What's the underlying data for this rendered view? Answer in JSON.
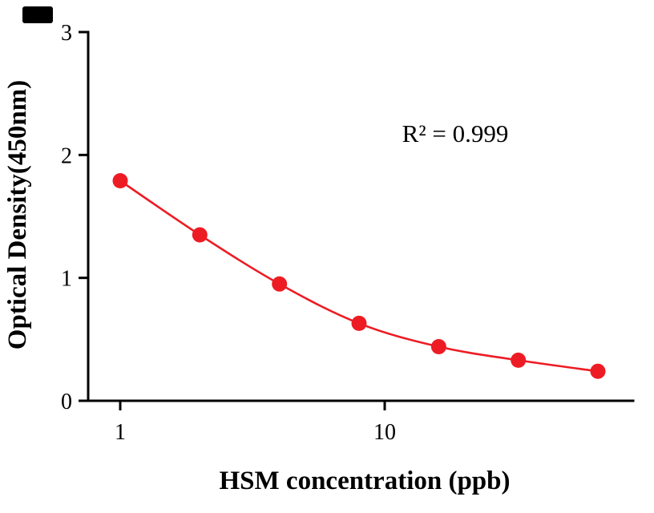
{
  "chart_data": {
    "type": "scatter",
    "title": "",
    "xlabel": "HSM concentration (ppb)",
    "ylabel": "Optical Density(450nm)",
    "annotation": "R² = 0.999",
    "x_scale": "log",
    "x": [
      1,
      2,
      4,
      8,
      16,
      32,
      64
    ],
    "y": [
      1.79,
      1.35,
      0.95,
      0.63,
      0.44,
      0.33,
      0.24
    ],
    "x_ticks": [
      1,
      10
    ],
    "x_range": [
      0.76,
      90
    ],
    "y_ticks": [
      0,
      1,
      2,
      3
    ],
    "ylim": [
      0,
      3
    ],
    "grid": false,
    "legend": "none",
    "marker_color": "#ED1C24",
    "line_color": "#ED1C24",
    "axis_color": "#000000",
    "background_color": "#FFFFFF"
  }
}
